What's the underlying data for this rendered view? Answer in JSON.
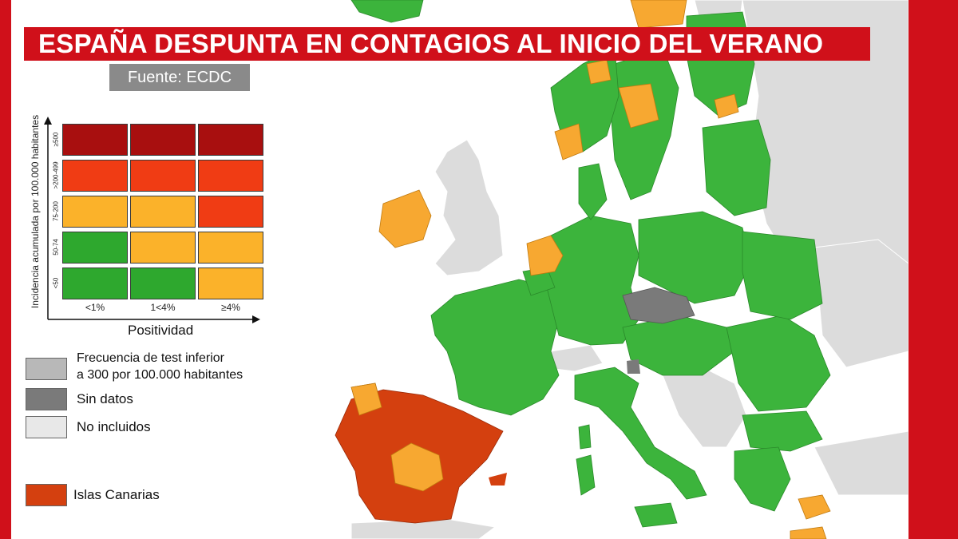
{
  "title": "ESPAÑA DESPUNTA EN CONTAGIOS AL INICIO DEL VERANO",
  "source": "Fuente: ECDC",
  "matrix": {
    "y_axis_label": "Incidencia acumulada por 100.000 habitantes",
    "x_axis_label": "Positividad",
    "rows": [
      "≥500",
      ">200-499",
      "75-200",
      "50-74",
      "<50"
    ],
    "columns": [
      "<1%",
      "1<4%",
      "≥4%"
    ],
    "cells": [
      [
        "#a80f0f",
        "#a80f0f",
        "#a80f0f"
      ],
      [
        "#f03c14",
        "#f03c14",
        "#f03c14"
      ],
      [
        "#fbb22a",
        "#fbb22a",
        "#f03c14"
      ],
      [
        "#2ea82e",
        "#fbb22a",
        "#fbb22a"
      ],
      [
        "#2ea82e",
        "#2ea82e",
        "#fbb22a"
      ]
    ]
  },
  "legend": [
    {
      "color": "#b8b8b8",
      "text": "Frecuencia de test inferior\na 300 por 100.000 habitantes"
    },
    {
      "color": "#7a7a7a",
      "text": "Sin datos"
    },
    {
      "color": "#e8e8e8",
      "text": "No incluidos"
    },
    {
      "color": "#d4400f",
      "text": "Islas Canarias"
    }
  ],
  "colors": {
    "green": "#3cb43c",
    "orange": "#f7a831",
    "red": "#d4400f",
    "gray_low_testing": "#b8b8b8",
    "dark_gray_no_data": "#7a7a7a",
    "not_included": "#dcdcdc",
    "accent_red": "#d0101a"
  }
}
